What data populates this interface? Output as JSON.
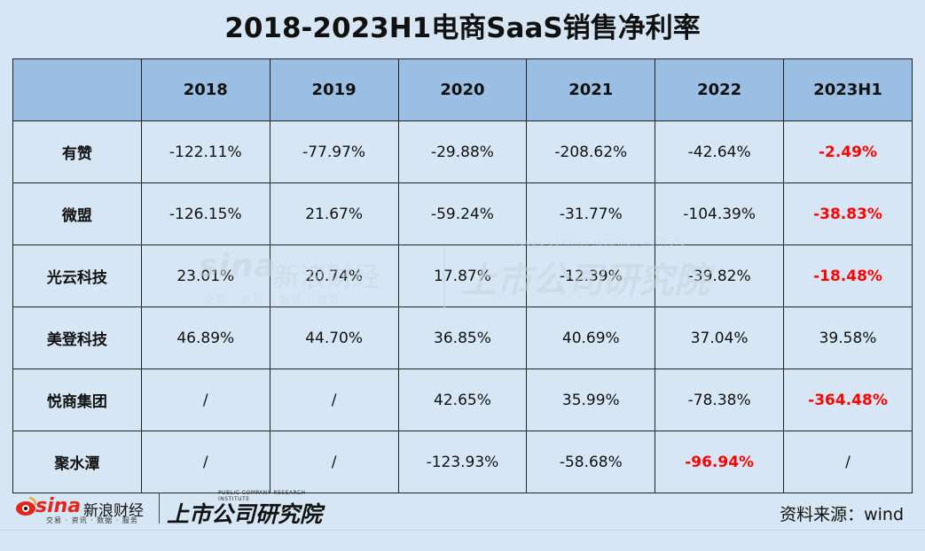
{
  "title": "2018-2023H1电商SaaS销售净利率",
  "chart_data": {
    "type": "table",
    "title": "2018-2023H1电商SaaS销售净利率",
    "columns": [
      "",
      "2018",
      "2019",
      "2020",
      "2021",
      "2022",
      "2023H1"
    ],
    "rows": [
      {
        "company": "有赞",
        "values": [
          "-122.11%",
          "-77.97%",
          "-29.88%",
          "-208.62%",
          "-42.64%",
          "-2.49%"
        ],
        "highlight": [
          false,
          false,
          false,
          false,
          false,
          true
        ]
      },
      {
        "company": "微盟",
        "values": [
          "-126.15%",
          "21.67%",
          "-59.24%",
          "-31.77%",
          "-104.39%",
          "-38.83%"
        ],
        "highlight": [
          false,
          false,
          false,
          false,
          false,
          true
        ]
      },
      {
        "company": "光云科技",
        "values": [
          "23.01%",
          "20.74%",
          "17.87%",
          "-12.39%",
          "-39.82%",
          "-18.48%"
        ],
        "highlight": [
          false,
          false,
          false,
          false,
          false,
          true
        ]
      },
      {
        "company": "美登科技",
        "values": [
          "46.89%",
          "44.70%",
          "36.85%",
          "40.69%",
          "37.04%",
          "39.58%"
        ],
        "highlight": [
          false,
          false,
          false,
          false,
          false,
          false
        ]
      },
      {
        "company": "悦商集团",
        "values": [
          "/",
          "/",
          "42.65%",
          "35.99%",
          "-78.38%",
          "-364.48%"
        ],
        "highlight": [
          false,
          false,
          false,
          false,
          false,
          true
        ]
      },
      {
        "company": "聚水潭",
        "values": [
          "/",
          "/",
          "-123.93%",
          "-58.68%",
          "-96.94%",
          "/"
        ],
        "highlight": [
          false,
          false,
          false,
          false,
          true,
          false
        ]
      }
    ],
    "highlight_color": "#ff0000",
    "header_color": "#9bbfe2",
    "background_color": "#d6e6f4"
  },
  "watermark": {
    "sina_text": "sina",
    "sina_cn": "新浪财经",
    "sina_sub": "交易 · 资讯 · 数据 · 服务",
    "institute": "上市公司研究院",
    "institute_en": "PUBLIC COMPANY RESEARCH INSTITUTE"
  },
  "footer": {
    "logo_sina": "sina",
    "logo_sina_cn": "新浪财经",
    "logo_sina_sub": "交易 · 资讯 · 数据 · 服务",
    "logo_institute": "上市公司研究院",
    "logo_institute_en": "PUBLIC COMPANY RESEARCH INSTITUTE",
    "source": "资料来源：wind"
  }
}
